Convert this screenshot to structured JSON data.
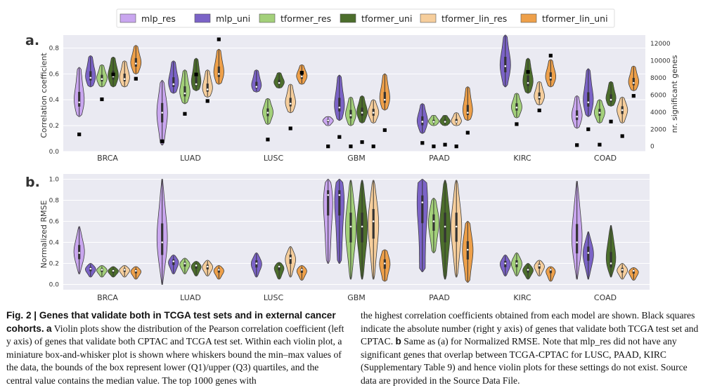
{
  "figure": {
    "legend": [
      {
        "label": "mlp_res",
        "color": "#c9a6ef"
      },
      {
        "label": "mlp_uni",
        "color": "#7b63c7"
      },
      {
        "label": "tformer_res",
        "color": "#a3d07a"
      },
      {
        "label": "tformer_uni",
        "color": "#4c6e2c"
      },
      {
        "label": "tformer_lin_res",
        "color": "#f6ce9c"
      },
      {
        "label": "tformer_lin_uni",
        "color": "#eea04a"
      }
    ],
    "panel_a": {
      "letter": "a.",
      "ylabel": "Correlation coefficient",
      "y2label": "nr. significant genes"
    },
    "panel_b": {
      "letter": "b.",
      "ylabel": "Normalized RMSE"
    }
  },
  "chart_data": [
    {
      "type": "violin",
      "panel": "a",
      "title": "",
      "xlabel": "",
      "ylabel": "Correlation coefficient",
      "y2label": "nr. significant genes",
      "ylim": [
        0,
        0.9
      ],
      "yticks": [
        "0.0",
        "0.2",
        "0.4",
        "0.6",
        "0.8"
      ],
      "y2lim": [
        -600,
        13000
      ],
      "y2ticks": [
        "0",
        "2000",
        "4000",
        "6000",
        "8000",
        "10000",
        "12000"
      ],
      "categories": [
        "BRCA",
        "LUAD",
        "LUSC",
        "GBM",
        "PAAD",
        "KIRC",
        "COAD"
      ],
      "series": [
        {
          "name": "mlp_res",
          "color": "#c9a6ef",
          "violins": [
            [
              0.27,
              0.65,
              0.38
            ],
            [
              0.05,
              0.55,
              0.3
            ],
            null,
            [
              0.2,
              0.27,
              0.24
            ],
            null,
            null,
            [
              0.18,
              0.43,
              0.27
            ]
          ],
          "genes": [
            1400,
            600,
            null,
            0,
            null,
            null,
            150
          ]
        },
        {
          "name": "mlp_uni",
          "color": "#7b63c7",
          "violins": [
            [
              0.5,
              0.74,
              0.57
            ],
            [
              0.45,
              0.7,
              0.52
            ],
            [
              0.46,
              0.63,
              0.5
            ],
            [
              0.24,
              0.59,
              0.34
            ],
            [
              0.14,
              0.37,
              0.23
            ],
            [
              0.5,
              0.9,
              0.66
            ],
            [
              0.27,
              0.64,
              0.38
            ]
          ],
          "genes": [
            null,
            null,
            null,
            1100,
            400,
            null,
            2000
          ]
        },
        {
          "name": "tformer_res",
          "color": "#a3d07a",
          "violins": [
            [
              0.5,
              0.67,
              0.56
            ],
            [
              0.37,
              0.63,
              0.45
            ],
            [
              0.21,
              0.41,
              0.3
            ],
            [
              0.2,
              0.42,
              0.28
            ],
            [
              0.2,
              0.28,
              0.23
            ],
            [
              0.26,
              0.45,
              0.34
            ],
            [
              0.22,
              0.4,
              0.3
            ]
          ],
          "genes": [
            5500,
            3800,
            800,
            0,
            0,
            2600,
            200
          ]
        },
        {
          "name": "tformer_uni",
          "color": "#4c6e2c",
          "violins": [
            [
              0.5,
              0.73,
              0.58
            ],
            [
              0.47,
              0.72,
              0.52
            ],
            [
              0.49,
              0.61,
              0.53
            ],
            [
              0.22,
              0.43,
              0.3
            ],
            [
              0.2,
              0.28,
              0.23
            ],
            [
              0.45,
              0.72,
              0.53
            ],
            [
              0.35,
              0.54,
              0.4
            ]
          ],
          "genes": [
            8400,
            8400,
            null,
            500,
            200,
            8700,
            2900
          ]
        },
        {
          "name": "tformer_lin_res",
          "color": "#f6ce9c",
          "violins": [
            [
              0.5,
              0.7,
              0.56
            ],
            [
              0.42,
              0.63,
              0.48
            ],
            [
              0.3,
              0.52,
              0.37
            ],
            [
              0.22,
              0.4,
              0.3
            ],
            [
              0.2,
              0.3,
              0.23
            ],
            [
              0.36,
              0.54,
              0.42
            ],
            [
              0.22,
              0.42,
              0.32
            ]
          ],
          "genes": [
            null,
            5300,
            2100,
            0,
            0,
            4200,
            1200
          ]
        },
        {
          "name": "tformer_lin_uni",
          "color": "#eea04a",
          "violins": [
            [
              0.6,
              0.82,
              0.68
            ],
            [
              0.52,
              0.79,
              0.6
            ],
            [
              0.52,
              0.67,
              0.58
            ],
            [
              0.32,
              0.6,
              0.4
            ],
            [
              0.24,
              0.5,
              0.3
            ],
            [
              0.5,
              0.71,
              0.57
            ],
            [
              0.47,
              0.66,
              0.53
            ]
          ],
          "genes": [
            7900,
            12500,
            8600,
            1900,
            1600,
            10600,
            5900
          ]
        }
      ]
    },
    {
      "type": "violin",
      "panel": "b",
      "title": "",
      "xlabel": "",
      "ylabel": "Normalized RMSE",
      "ylim": [
        -0.05,
        1.05
      ],
      "yticks": [
        "0.0",
        "0.2",
        "0.4",
        "0.6",
        "0.8",
        "1.0"
      ],
      "categories": [
        "BRCA",
        "LUAD",
        "LUSC",
        "GBM",
        "PAAD",
        "KIRC",
        "COAD"
      ],
      "series": [
        {
          "name": "mlp_res",
          "color": "#c9a6ef",
          "violins": [
            [
              0.1,
              0.55,
              0.3,
              0.1
            ],
            [
              0.0,
              1.0,
              0.4,
              0.04
            ],
            null,
            [
              0.2,
              1.0,
              0.85,
              0.45
            ],
            null,
            null,
            [
              0.05,
              0.98,
              0.4,
              0.04
            ]
          ]
        },
        {
          "name": "mlp_uni",
          "color": "#7b63c7",
          "violins": [
            [
              0.07,
              0.2,
              0.15,
              0.18
            ],
            [
              0.1,
              0.28,
              0.22,
              0.22
            ],
            [
              0.07,
              0.3,
              0.2,
              0.2
            ],
            [
              0.2,
              1.0,
              0.85,
              0.6
            ],
            [
              0.12,
              1.0,
              0.78,
              0.98
            ],
            [
              0.08,
              0.28,
              0.2,
              0.2
            ],
            [
              0.05,
              0.5,
              0.3,
              0.04
            ]
          ]
        },
        {
          "name": "tformer_res",
          "color": "#a3d07a",
          "violins": [
            [
              0.07,
              0.18,
              0.14,
              0.22
            ],
            [
              0.1,
              0.25,
              0.2,
              0.18
            ],
            null,
            [
              0.05,
              0.99,
              0.55,
              0.18
            ],
            [
              0.3,
              0.82,
              0.6,
              0.5
            ],
            [
              0.08,
              0.3,
              0.2,
              0.22
            ],
            null
          ]
        },
        {
          "name": "tformer_uni",
          "color": "#4c6e2c",
          "violins": [
            [
              0.07,
              0.17,
              0.13,
              0.2
            ],
            [
              0.08,
              0.22,
              0.18,
              0.22
            ],
            [
              0.05,
              0.21,
              0.17,
              0.22
            ],
            [
              0.05,
              0.99,
              0.55,
              0.22
            ],
            [
              0.05,
              0.99,
              0.55,
              0.32
            ],
            [
              0.05,
              0.2,
              0.14,
              0.2
            ],
            [
              0.07,
              0.56,
              0.2,
              0.04
            ]
          ]
        },
        {
          "name": "tformer_lin_res",
          "color": "#f6ce9c",
          "violins": [
            [
              0.07,
              0.18,
              0.14,
              0.22
            ],
            [
              0.08,
              0.23,
              0.17,
              0.24
            ],
            [
              0.07,
              0.36,
              0.25,
              0.18
            ],
            [
              0.05,
              0.99,
              0.6,
              0.22
            ],
            [
              0.07,
              0.99,
              0.55,
              0.28
            ],
            [
              0.08,
              0.23,
              0.18,
              0.24
            ],
            [
              0.05,
              0.2,
              0.14,
              0.2
            ]
          ]
        },
        {
          "name": "tformer_lin_uni",
          "color": "#eea04a",
          "violins": [
            [
              0.05,
              0.17,
              0.13,
              0.22
            ],
            [
              0.05,
              0.18,
              0.14,
              0.22
            ],
            [
              0.04,
              0.18,
              0.14,
              0.22
            ],
            [
              0.03,
              0.33,
              0.2,
              0.6
            ],
            [
              0.02,
              0.6,
              0.33,
              0.6
            ],
            [
              0.03,
              0.17,
              0.14,
              0.22
            ],
            [
              0.04,
              0.16,
              0.13,
              0.22
            ]
          ]
        }
      ]
    }
  ],
  "caption": {
    "title": "Fig. 2 | Genes that validate both in TCGA test sets and in external cancer cohorts.",
    "left_a_label": "a",
    "left_text": "Violin plots show the distribution of the Pearson correlation coefficient (left y axis) of genes that validate both CPTAC and TCGA test set. Within each violin plot, a miniature box-and-whisker plot is shown where whiskers bound the min–max values of the data, the bounds of the box represent lower (Q1)/upper (Q3) quartiles, and the central value contains the median value. The top 1000 genes with",
    "right_text_1": "the highest correlation coefficients obtained from each model are shown. Black squares indicate the absolute number (right y axis) of genes that validate both TCGA test set and CPTAC.",
    "right_b_label": "b",
    "right_text_2": "Same as (a) for Normalized RMSE. Note that mlp_res did not have any significant genes that overlap between TCGA-CPTAC for LUSC, PAAD, KIRC (Supplementary Table 9) and hence violin plots for these settings do not exist. Source data are provided in the Source Data File."
  }
}
